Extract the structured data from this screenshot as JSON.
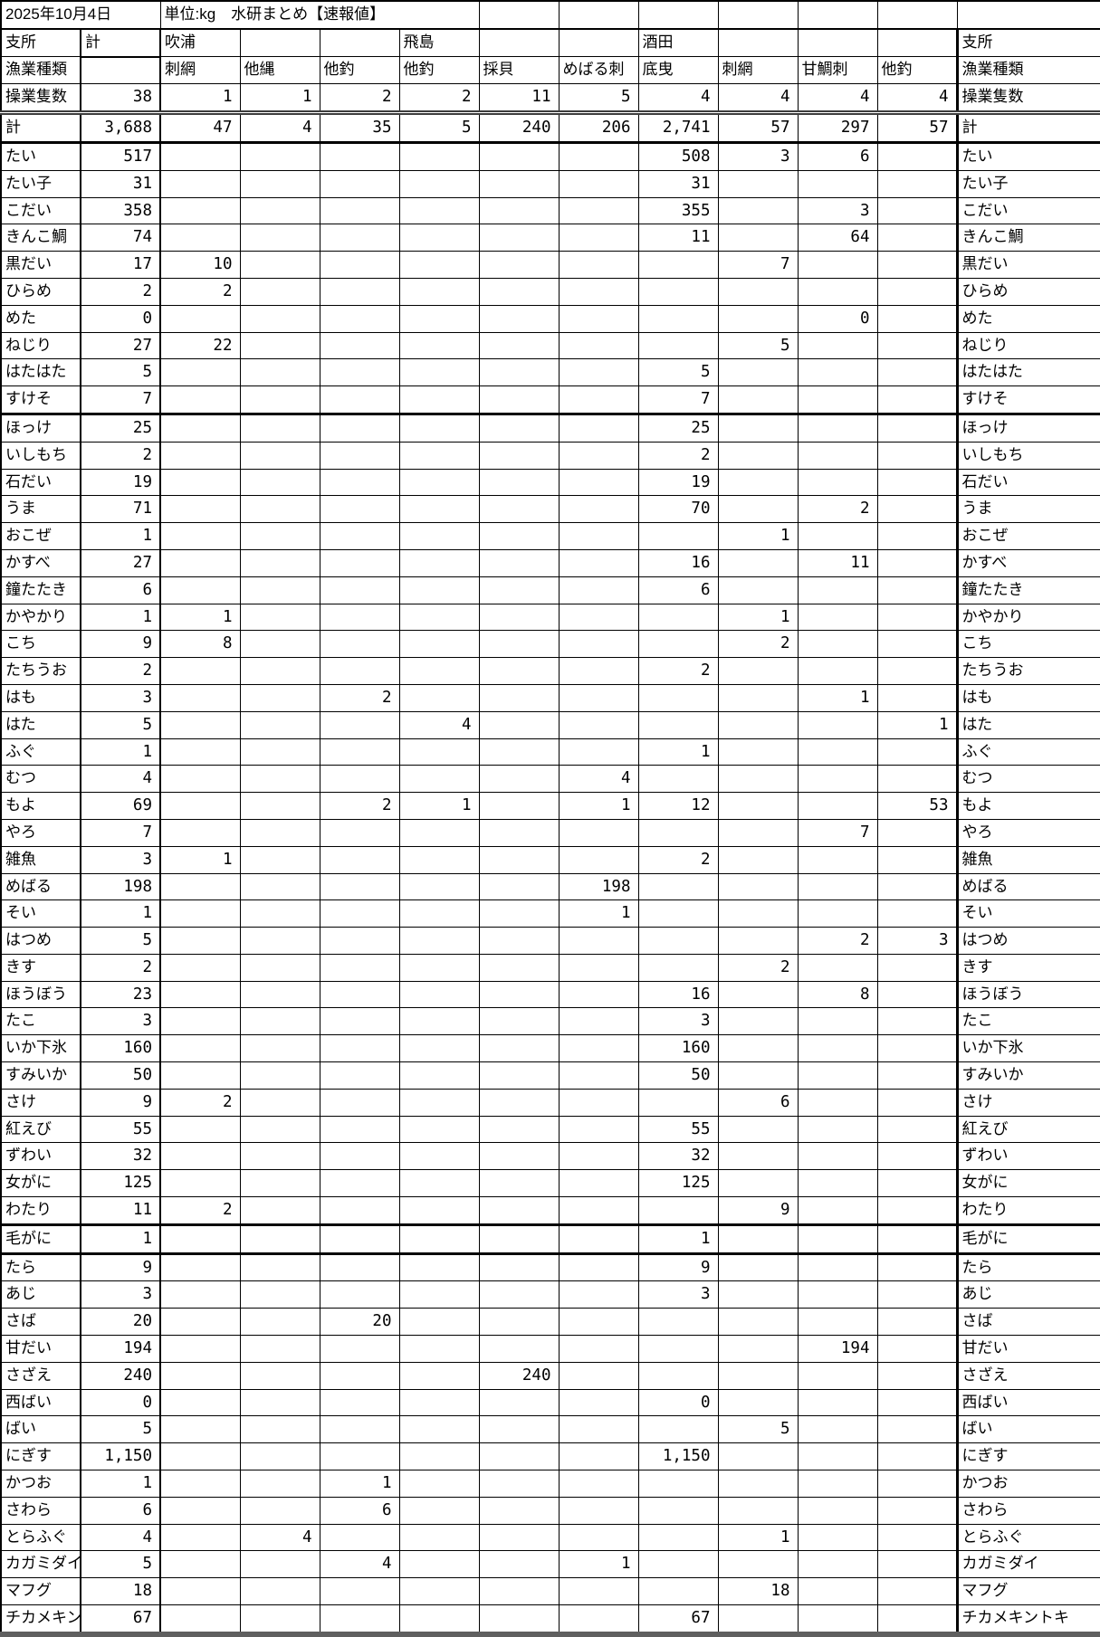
{
  "page": {
    "date": "2025年10月4日",
    "title": "単位:kg　水研まとめ【速報値】"
  },
  "table": {
    "corner": {
      "top_left_row1": "支所",
      "top_left_row2": "漁業種類",
      "top_right_row1": "支所",
      "top_right_row2": "漁業種類"
    },
    "total_col_header": "計",
    "columns": [
      {
        "branch": "吹浦",
        "gear": "刺網"
      },
      {
        "branch": "",
        "gear": "他縄"
      },
      {
        "branch": "",
        "gear": "他釣"
      },
      {
        "branch": "飛島",
        "gear": "他釣"
      },
      {
        "branch": "",
        "gear": "採貝"
      },
      {
        "branch": "",
        "gear": "めばる刺"
      },
      {
        "branch": "酒田",
        "gear": "底曳"
      },
      {
        "branch": "",
        "gear": "刺網"
      },
      {
        "branch": "",
        "gear": "甘鯛刺"
      },
      {
        "branch": "",
        "gear": "他釣"
      }
    ],
    "vessels_row": {
      "label": "操業隻数",
      "total": "38",
      "values": [
        "1",
        "1",
        "2",
        "2",
        "11",
        "5",
        "4",
        "4",
        "4",
        "4"
      ]
    },
    "total_row": {
      "label": "計",
      "total": "3,688",
      "values": [
        "47",
        "4",
        "35",
        "5",
        "240",
        "206",
        "2,741",
        "57",
        "297",
        "57"
      ]
    },
    "rows": [
      {
        "label": "たい",
        "total": "517",
        "values": [
          "",
          "",
          "",
          "",
          "",
          "",
          "508",
          "3",
          "6",
          ""
        ]
      },
      {
        "label": "たい子",
        "total": "31",
        "values": [
          "",
          "",
          "",
          "",
          "",
          "",
          "31",
          "",
          "",
          ""
        ]
      },
      {
        "label": "こだい",
        "total": "358",
        "values": [
          "",
          "",
          "",
          "",
          "",
          "",
          "355",
          "",
          "3",
          ""
        ]
      },
      {
        "label": "きんこ鯛",
        "total": "74",
        "values": [
          "",
          "",
          "",
          "",
          "",
          "",
          "11",
          "",
          "64",
          ""
        ]
      },
      {
        "label": "黒だい",
        "total": "17",
        "values": [
          "10",
          "",
          "",
          "",
          "",
          "",
          "",
          "7",
          "",
          ""
        ]
      },
      {
        "label": "ひらめ",
        "total": "2",
        "values": [
          "2",
          "",
          "",
          "",
          "",
          "",
          "",
          "",
          "",
          ""
        ]
      },
      {
        "label": "めた",
        "total": "0",
        "values": [
          "",
          "",
          "",
          "",
          "",
          "",
          "",
          "",
          "0",
          ""
        ]
      },
      {
        "label": "ねじり",
        "total": "27",
        "values": [
          "22",
          "",
          "",
          "",
          "",
          "",
          "",
          "5",
          "",
          ""
        ]
      },
      {
        "label": "はたはた",
        "total": "5",
        "values": [
          "",
          "",
          "",
          "",
          "",
          "",
          "5",
          "",
          "",
          ""
        ]
      },
      {
        "label": "すけそ",
        "total": "7",
        "values": [
          "",
          "",
          "",
          "",
          "",
          "",
          "7",
          "",
          "",
          ""
        ],
        "thick_below": true
      },
      {
        "label": "ほっけ",
        "total": "25",
        "values": [
          "",
          "",
          "",
          "",
          "",
          "",
          "25",
          "",
          "",
          ""
        ]
      },
      {
        "label": "いしもち",
        "total": "2",
        "values": [
          "",
          "",
          "",
          "",
          "",
          "",
          "2",
          "",
          "",
          ""
        ]
      },
      {
        "label": "石だい",
        "total": "19",
        "values": [
          "",
          "",
          "",
          "",
          "",
          "",
          "19",
          "",
          "",
          ""
        ]
      },
      {
        "label": "うま",
        "total": "71",
        "values": [
          "",
          "",
          "",
          "",
          "",
          "",
          "70",
          "",
          "2",
          ""
        ]
      },
      {
        "label": "おこぜ",
        "total": "1",
        "values": [
          "",
          "",
          "",
          "",
          "",
          "",
          "",
          "1",
          "",
          ""
        ]
      },
      {
        "label": "かすべ",
        "total": "27",
        "values": [
          "",
          "",
          "",
          "",
          "",
          "",
          "16",
          "",
          "11",
          ""
        ]
      },
      {
        "label": "鐘たたき",
        "total": "6",
        "values": [
          "",
          "",
          "",
          "",
          "",
          "",
          "6",
          "",
          "",
          ""
        ]
      },
      {
        "label": "かやかり",
        "total": "1",
        "values": [
          "1",
          "",
          "",
          "",
          "",
          "",
          "",
          "1",
          "",
          ""
        ]
      },
      {
        "label": "こち",
        "total": "9",
        "values": [
          "8",
          "",
          "",
          "",
          "",
          "",
          "",
          "2",
          "",
          ""
        ]
      },
      {
        "label": "たちうお",
        "total": "2",
        "values": [
          "",
          "",
          "",
          "",
          "",
          "",
          "2",
          "",
          "",
          ""
        ]
      },
      {
        "label": "はも",
        "total": "3",
        "values": [
          "",
          "",
          "2",
          "",
          "",
          "",
          "",
          "",
          "1",
          ""
        ]
      },
      {
        "label": "はた",
        "total": "5",
        "values": [
          "",
          "",
          "",
          "4",
          "",
          "",
          "",
          "",
          "",
          "1"
        ]
      },
      {
        "label": "ふぐ",
        "total": "1",
        "values": [
          "",
          "",
          "",
          "",
          "",
          "",
          "1",
          "",
          "",
          ""
        ]
      },
      {
        "label": "むつ",
        "total": "4",
        "values": [
          "",
          "",
          "",
          "",
          "",
          "4",
          "",
          "",
          "",
          ""
        ]
      },
      {
        "label": "もよ",
        "total": "69",
        "values": [
          "",
          "",
          "2",
          "1",
          "",
          "1",
          "12",
          "",
          "",
          "53"
        ]
      },
      {
        "label": "やろ",
        "total": "7",
        "values": [
          "",
          "",
          "",
          "",
          "",
          "",
          "",
          "",
          "7",
          ""
        ]
      },
      {
        "label": "雑魚",
        "total": "3",
        "values": [
          "1",
          "",
          "",
          "",
          "",
          "",
          "2",
          "",
          "",
          ""
        ]
      },
      {
        "label": "めばる",
        "total": "198",
        "values": [
          "",
          "",
          "",
          "",
          "",
          "198",
          "",
          "",
          "",
          ""
        ]
      },
      {
        "label": "そい",
        "total": "1",
        "values": [
          "",
          "",
          "",
          "",
          "",
          "1",
          "",
          "",
          "",
          ""
        ]
      },
      {
        "label": "はつめ",
        "total": "5",
        "values": [
          "",
          "",
          "",
          "",
          "",
          "",
          "",
          "",
          "2",
          "3"
        ]
      },
      {
        "label": "きす",
        "total": "2",
        "values": [
          "",
          "",
          "",
          "",
          "",
          "",
          "",
          "2",
          "",
          ""
        ]
      },
      {
        "label": "ほうぼう",
        "total": "23",
        "values": [
          "",
          "",
          "",
          "",
          "",
          "",
          "16",
          "",
          "8",
          ""
        ]
      },
      {
        "label": "たこ",
        "total": "3",
        "values": [
          "",
          "",
          "",
          "",
          "",
          "",
          "3",
          "",
          "",
          ""
        ]
      },
      {
        "label": "いか下氷",
        "total": "160",
        "values": [
          "",
          "",
          "",
          "",
          "",
          "",
          "160",
          "",
          "",
          ""
        ]
      },
      {
        "label": "すみいか",
        "total": "50",
        "values": [
          "",
          "",
          "",
          "",
          "",
          "",
          "50",
          "",
          "",
          ""
        ]
      },
      {
        "label": "さけ",
        "total": "9",
        "values": [
          "2",
          "",
          "",
          "",
          "",
          "",
          "",
          "6",
          "",
          ""
        ]
      },
      {
        "label": "紅えび",
        "total": "55",
        "values": [
          "",
          "",
          "",
          "",
          "",
          "",
          "55",
          "",
          "",
          ""
        ]
      },
      {
        "label": "ずわい",
        "total": "32",
        "values": [
          "",
          "",
          "",
          "",
          "",
          "",
          "32",
          "",
          "",
          ""
        ]
      },
      {
        "label": "女がに",
        "total": "125",
        "values": [
          "",
          "",
          "",
          "",
          "",
          "",
          "125",
          "",
          "",
          ""
        ]
      },
      {
        "label": "わたり",
        "total": "11",
        "values": [
          "2",
          "",
          "",
          "",
          "",
          "",
          "",
          "9",
          "",
          ""
        ],
        "thick_below": true
      },
      {
        "label": "毛がに",
        "total": "1",
        "values": [
          "",
          "",
          "",
          "",
          "",
          "",
          "1",
          "",
          "",
          ""
        ],
        "thick_below": true
      },
      {
        "label": "たら",
        "total": "9",
        "values": [
          "",
          "",
          "",
          "",
          "",
          "",
          "9",
          "",
          "",
          ""
        ]
      },
      {
        "label": "あじ",
        "total": "3",
        "values": [
          "",
          "",
          "",
          "",
          "",
          "",
          "3",
          "",
          "",
          ""
        ]
      },
      {
        "label": "さば",
        "total": "20",
        "values": [
          "",
          "",
          "20",
          "",
          "",
          "",
          "",
          "",
          "",
          ""
        ]
      },
      {
        "label": "甘だい",
        "total": "194",
        "values": [
          "",
          "",
          "",
          "",
          "",
          "",
          "",
          "",
          "194",
          ""
        ]
      },
      {
        "label": "さざえ",
        "total": "240",
        "values": [
          "",
          "",
          "",
          "",
          "240",
          "",
          "",
          "",
          "",
          ""
        ]
      },
      {
        "label": "西ばい",
        "total": "0",
        "values": [
          "",
          "",
          "",
          "",
          "",
          "",
          "0",
          "",
          "",
          ""
        ]
      },
      {
        "label": "ばい",
        "total": "5",
        "values": [
          "",
          "",
          "",
          "",
          "",
          "",
          "",
          "5",
          "",
          ""
        ]
      },
      {
        "label": "にぎす",
        "total": "1,150",
        "values": [
          "",
          "",
          "",
          "",
          "",
          "",
          "1,150",
          "",
          "",
          ""
        ]
      },
      {
        "label": "かつお",
        "total": "1",
        "values": [
          "",
          "",
          "1",
          "",
          "",
          "",
          "",
          "",
          "",
          ""
        ]
      },
      {
        "label": "さわら",
        "total": "6",
        "values": [
          "",
          "",
          "6",
          "",
          "",
          "",
          "",
          "",
          "",
          ""
        ]
      },
      {
        "label": "とらふぐ",
        "total": "4",
        "values": [
          "",
          "4",
          "",
          "",
          "",
          "",
          "",
          "1",
          "",
          ""
        ]
      },
      {
        "label": "カガミダイ",
        "total": "5",
        "values": [
          "",
          "",
          "4",
          "",
          "",
          "1",
          "",
          "",
          "",
          ""
        ]
      },
      {
        "label": "マフグ",
        "total": "18",
        "values": [
          "",
          "",
          "",
          "",
          "",
          "",
          "",
          "18",
          "",
          ""
        ]
      },
      {
        "label": "チカメキントキ",
        "total": "67",
        "values": [
          "",
          "",
          "",
          "",
          "",
          "",
          "67",
          "",
          "",
          ""
        ]
      }
    ]
  },
  "colors": {
    "background": "#ffffff",
    "grid": "#000000",
    "text": "#000000",
    "gray_band": "#5f5f5f"
  }
}
